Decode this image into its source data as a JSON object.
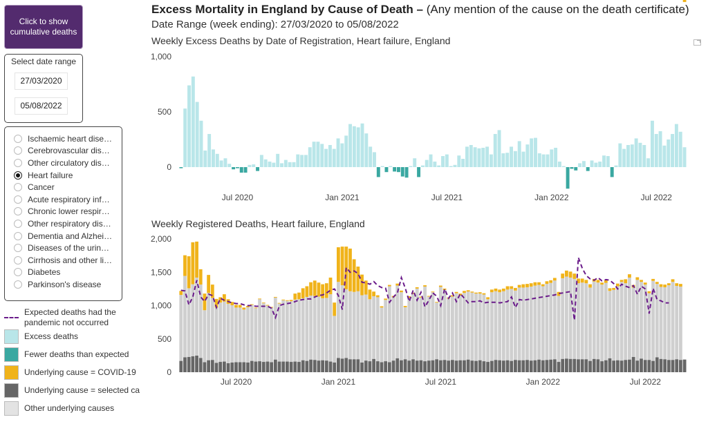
{
  "sidebar": {
    "cumulative_button": "Click to show cumulative deaths",
    "date_range_label": "Select date range",
    "start_date": "27/03/2020",
    "end_date": "05/08/2022",
    "causes": [
      {
        "label": "Ischaemic heart dise…",
        "selected": false
      },
      {
        "label": "Cerebrovascular dis…",
        "selected": false
      },
      {
        "label": "Other circulatory dis…",
        "selected": false
      },
      {
        "label": "Heart failure",
        "selected": true
      },
      {
        "label": "Cancer",
        "selected": false
      },
      {
        "label": "Acute respiratory inf…",
        "selected": false
      },
      {
        "label": "Chronic lower respir…",
        "selected": false
      },
      {
        "label": "Other respiratory dis…",
        "selected": false
      },
      {
        "label": "Dementia and Alzhei…",
        "selected": false
      },
      {
        "label": "Diseases of the urin…",
        "selected": false
      },
      {
        "label": "Cirrhosis and other li…",
        "selected": false
      },
      {
        "label": "Diabetes",
        "selected": false
      },
      {
        "label": "Parkinson's disease",
        "selected": false
      }
    ]
  },
  "legend": [
    {
      "label": "Expected deaths had the pandemic not occurred",
      "type": "line",
      "color": "#6a1b8a"
    },
    {
      "label": "Excess deaths",
      "type": "swatch",
      "color": "#b9e6e9"
    },
    {
      "label": "Fewer deaths than expected",
      "type": "swatch",
      "color": "#3aa8a1"
    },
    {
      "label": "Underlying cause  = COVID-19",
      "type": "swatch",
      "color": "#f0b31a"
    },
    {
      "label": "Underlying cause = selected ca",
      "type": "swatch",
      "color": "#666666"
    },
    {
      "label": "Other underlying causes",
      "type": "swatch",
      "color": "#e3e3e3"
    }
  ],
  "header": {
    "title_bold": "Excess Mortality in England by Cause of Death – ",
    "title_rest": "(Any mention of the cause on the death certificate)",
    "date_range": "Date Range (week ending): 27/03/2020 to 05/08/2022"
  },
  "colors": {
    "excess": "#b9e6e9",
    "fewer": "#3aa8a1",
    "covid": "#f0b31a",
    "selected": "#666666",
    "other": "#cfcfcf",
    "expected_line": "#6a1b8a"
  },
  "chart_data": [
    {
      "type": "bar",
      "title": "Weekly Excess Deaths by Date of Registration, Heart failure, England",
      "xlabel": "",
      "ylabel": "",
      "ylim": [
        -200,
        1000
      ],
      "yticks": [
        0,
        500,
        1000
      ],
      "ytick_labels": [
        "0",
        "500",
        "1,000"
      ],
      "xtick_labels": [
        "Jul 2020",
        "Jan 2021",
        "Jul 2021",
        "Jan 2022",
        "Jul 2022"
      ],
      "xtick_week_index": [
        14,
        40,
        66,
        92,
        118
      ],
      "x_start": "27/03/2020",
      "x_end": "05/08/2022",
      "values": [
        -10,
        530,
        740,
        820,
        590,
        420,
        150,
        300,
        160,
        120,
        60,
        80,
        30,
        -20,
        -10,
        -50,
        -50,
        20,
        25,
        -35,
        110,
        70,
        50,
        40,
        120,
        35,
        65,
        45,
        45,
        115,
        110,
        110,
        180,
        230,
        230,
        210,
        165,
        200,
        165,
        260,
        215,
        285,
        390,
        370,
        360,
        395,
        305,
        185,
        135,
        -90,
        0,
        -45,
        5,
        -40,
        -45,
        -85,
        -95,
        0,
        80,
        -90,
        15,
        65,
        115,
        50,
        15,
        100,
        115,
        0,
        20,
        105,
        75,
        185,
        200,
        180,
        170,
        175,
        185,
        115,
        300,
        335,
        125,
        130,
        185,
        145,
        235,
        140,
        205,
        260,
        265,
        125,
        115,
        115,
        160,
        175,
        50,
        5,
        -195,
        -15,
        -30,
        35,
        55,
        -35,
        60,
        40,
        50,
        105,
        100,
        -90,
        15,
        215,
        165,
        200,
        205,
        260,
        220,
        200,
        80,
        420,
        300,
        325,
        195,
        250,
        300,
        390,
        320,
        180
      ],
      "series_colors": {
        "positive": "#b9e6e9",
        "negative": "#3aa8a1"
      }
    },
    {
      "type": "bar",
      "stacked": true,
      "title": "Weekly Registered Deaths, Heart failure, England",
      "xlabel": "",
      "ylabel": "",
      "ylim": [
        0,
        2000
      ],
      "yticks": [
        0,
        500,
        1000,
        1500,
        2000
      ],
      "ytick_labels": [
        "0",
        "500",
        "1,000",
        "1,500",
        "2,000"
      ],
      "xtick_labels": [
        "Jul 2020",
        "Jan 2021",
        "Jul 2021",
        "Jan 2022",
        "Jul 2022"
      ],
      "xtick_week_index": [
        14,
        40,
        66,
        92,
        118
      ],
      "series": [
        {
          "name": "Underlying cause = selected cause",
          "color": "#666666",
          "values": [
            170,
            225,
            230,
            240,
            250,
            215,
            150,
            180,
            185,
            140,
            155,
            160,
            135,
            145,
            150,
            150,
            150,
            145,
            170,
            160,
            165,
            155,
            160,
            150,
            190,
            160,
            160,
            160,
            155,
            160,
            155,
            180,
            170,
            190,
            185,
            175,
            180,
            175,
            160,
            145,
            215,
            205,
            215,
            195,
            195,
            195,
            145,
            175,
            165,
            200,
            165,
            150,
            165,
            150,
            175,
            210,
            180,
            195,
            175,
            195,
            175,
            180,
            165,
            175,
            180,
            195,
            180,
            185,
            175,
            185,
            175,
            180,
            180,
            190,
            175,
            170,
            180,
            165,
            155,
            170,
            185,
            180,
            175,
            180,
            170,
            185,
            180,
            180,
            185,
            175,
            180,
            190,
            180,
            185,
            190,
            195,
            155,
            200,
            205,
            200,
            200,
            195,
            195,
            195,
            170,
            200,
            195,
            165,
            180,
            210,
            175,
            180,
            175,
            185,
            190,
            230,
            175,
            205,
            185,
            185,
            170,
            225,
            200,
            195,
            185,
            185,
            195,
            185,
            190
          ]
        },
        {
          "name": "Other underlying causes",
          "color": "#cfcfcf",
          "values": [
            990,
            1220,
            1030,
            1080,
            1170,
            1100,
            780,
            1010,
            930,
            830,
            890,
            900,
            890,
            860,
            820,
            820,
            790,
            830,
            840,
            800,
            930,
            880,
            840,
            820,
            930,
            870,
            920,
            910,
            910,
            930,
            940,
            930,
            960,
            960,
            960,
            960,
            930,
            940,
            1010,
            700,
            1140,
            1100,
            1030,
            1020,
            1010,
            1020,
            1010,
            990,
            930,
            940,
            960,
            820,
            920,
            1140,
            950,
            1090,
            1020,
            780,
            940,
            980,
            1080,
            940,
            1120,
            960,
            1020,
            850,
            1100,
            1050,
            930,
            950,
            1010,
            970,
            1010,
            1020,
            1020,
            1010,
            1000,
            1000,
            940,
            1030,
            1030,
            1020,
            1040,
            1060,
            1080,
            1040,
            1090,
            1090,
            1090,
            1110,
            1120,
            1120,
            1110,
            1140,
            1150,
            1180,
            990,
            1210,
            1230,
            1220,
            1200,
            1140,
            1150,
            1140,
            1100,
            1160,
            1150,
            1150,
            1160,
            1010,
            1060,
            1110,
            1180,
            1150,
            1230,
            1040,
            1210,
            1150,
            1130,
            1000,
            1200,
            1100,
            1080,
            1080,
            1120,
            1170,
            1100,
            1100
          ]
        },
        {
          "name": "Underlying cause = COVID-19",
          "color": "#f0b31a",
          "values": [
            60,
            310,
            480,
            630,
            540,
            230,
            250,
            270,
            200,
            130,
            80,
            110,
            70,
            50,
            40,
            40,
            30,
            20,
            10,
            10,
            10,
            10,
            10,
            10,
            10,
            10,
            10,
            10,
            20,
            90,
            100,
            150,
            160,
            200,
            230,
            210,
            210,
            220,
            250,
            200,
            520,
            580,
            640,
            640,
            490,
            370,
            310,
            210,
            145,
            70,
            30,
            20,
            20,
            20,
            20,
            30,
            25,
            20,
            25,
            20,
            20,
            15,
            20,
            10,
            10,
            10,
            20,
            20,
            15,
            20,
            20,
            30,
            30,
            20,
            15,
            15,
            20,
            20,
            30,
            40,
            40,
            40,
            40,
            50,
            40,
            40,
            40,
            50,
            50,
            50,
            50,
            40,
            30,
            40,
            40,
            40,
            60,
            70,
            90,
            90,
            80,
            70,
            60,
            50,
            50,
            40,
            40,
            30,
            40,
            40,
            30,
            40,
            30,
            60,
            50,
            40,
            40,
            30,
            30,
            30,
            30,
            30,
            40,
            40,
            30,
            40,
            40,
            40,
            30
          ]
        },
        {
          "name": "Expected deaths had the pandemic not occurred",
          "type": "line",
          "color": "#6a1b8a",
          "values": [
            1230,
            1220,
            1010,
            1130,
            1380,
            1130,
            1060,
            1170,
            1150,
            970,
            1110,
            1080,
            1060,
            1040,
            1030,
            1030,
            1010,
            1000,
            1000,
            990,
            990,
            990,
            990,
            960,
            820,
            1000,
            1020,
            1030,
            1040,
            1060,
            1080,
            1090,
            1100,
            1100,
            1130,
            1150,
            1160,
            1190,
            1230,
            1250,
            1150,
            940,
            1570,
            1500,
            1520,
            1480,
            1350,
            1340,
            1320,
            1360,
            1300,
            1270,
            1260,
            1050,
            1130,
            1190,
            1420,
            1260,
            1060,
            1230,
            1080,
            1200,
            980,
            1080,
            1190,
            1140,
            1000,
            1250,
            1110,
            1190,
            1060,
            1180,
            1110,
            1040,
            1060,
            1060,
            1070,
            1040,
            1050,
            1050,
            1050,
            1040,
            1050,
            1060,
            1130,
            970,
            1090,
            1080,
            1090,
            1100,
            1110,
            1120,
            1130,
            1140,
            1150,
            1160,
            1180,
            1190,
            1200,
            1210,
            780,
            1720,
            1560,
            1450,
            1400,
            1380,
            1420,
            1370,
            1390,
            1380,
            1330,
            1250,
            1320,
            1290,
            1270,
            1300,
            1170,
            1290,
            1250,
            880,
            1260,
            1090,
            1070,
            1040,
            1040
          ]
        }
      ],
      "x_start": "27/03/2020",
      "x_end": "05/08/2022"
    }
  ]
}
